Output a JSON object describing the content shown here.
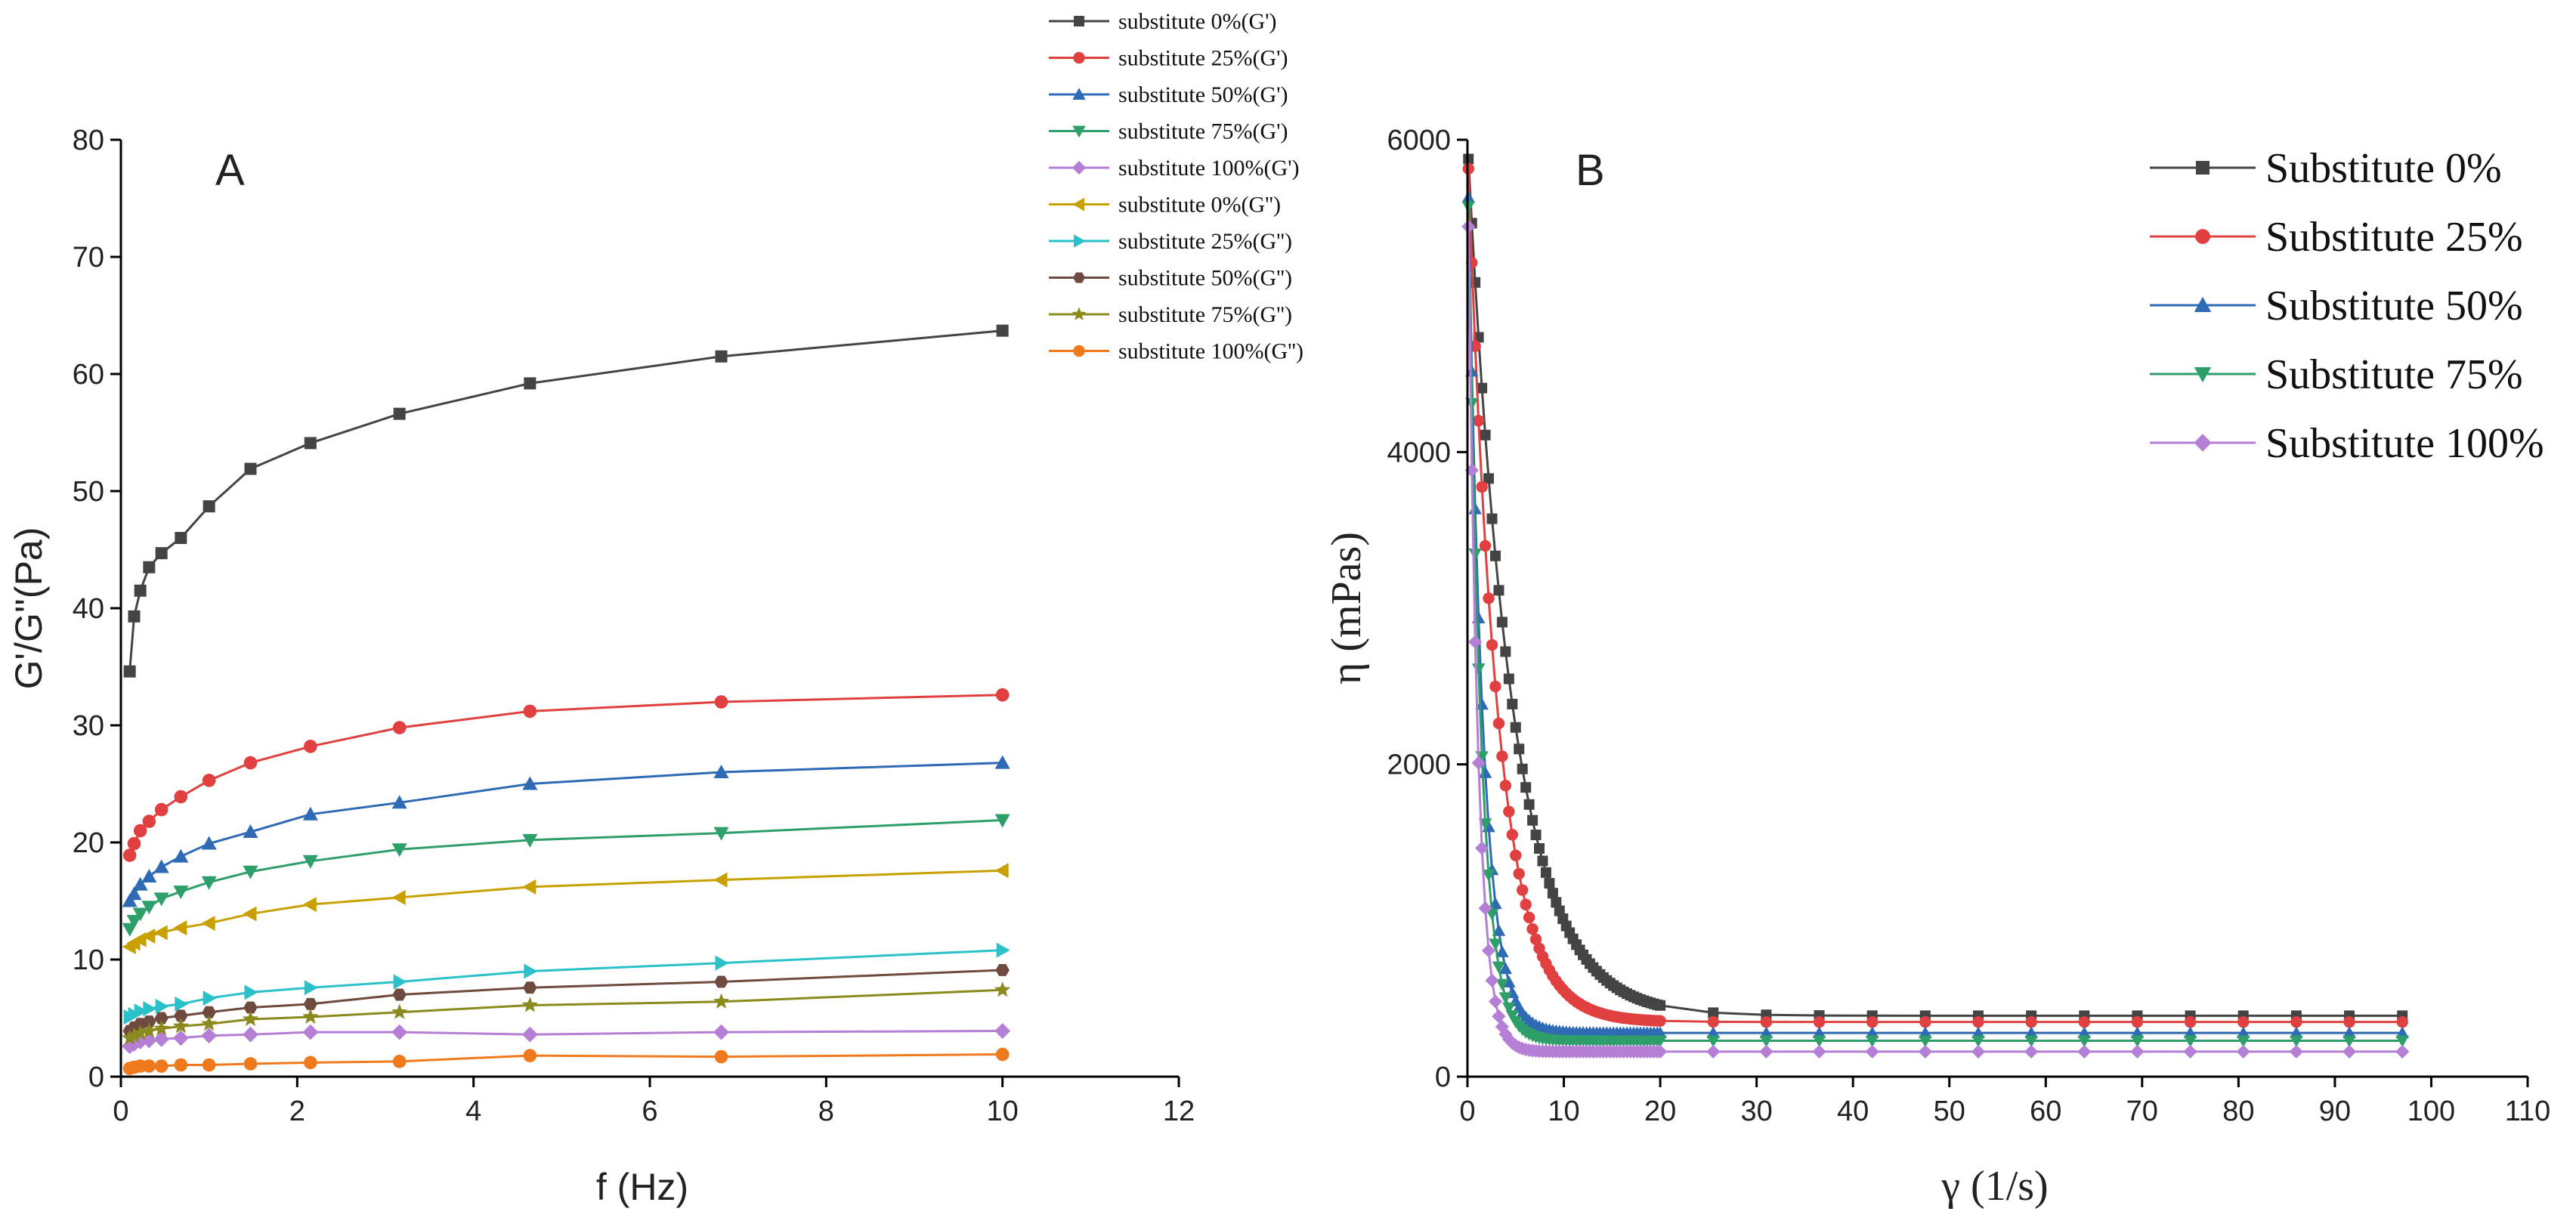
{
  "chart_data": [
    {
      "panel": "A",
      "type": "line",
      "xlabel": "f (Hz)",
      "ylabel": "G'/G''(Pa)",
      "xlim": [
        0,
        12
      ],
      "ylim": [
        0,
        80
      ],
      "xticks": [
        0,
        2,
        4,
        6,
        8,
        10,
        12
      ],
      "yticks": [
        0,
        10,
        20,
        30,
        40,
        50,
        60,
        70,
        80
      ],
      "legend_position": "top-right-outside",
      "x": [
        0.1,
        0.15,
        0.22,
        0.32,
        0.46,
        0.68,
        1.0,
        1.47,
        2.15,
        3.16,
        4.64,
        6.81,
        10.0
      ],
      "series": [
        {
          "name": "substitute 0%(G')",
          "color": "#444444",
          "marker": "square",
          "values": [
            34.6,
            39.3,
            41.5,
            43.5,
            44.7,
            46.0,
            48.7,
            51.9,
            54.1,
            56.6,
            59.2,
            61.5,
            63.7
          ]
        },
        {
          "name": "substitute 25%(G')",
          "color": "#e0403f",
          "marker": "circle",
          "values": [
            18.9,
            19.9,
            21.0,
            21.8,
            22.8,
            23.9,
            25.3,
            26.8,
            28.2,
            29.8,
            31.2,
            32.0,
            32.6
          ]
        },
        {
          "name": "substitute 50%(G')",
          "color": "#2f6ab5",
          "marker": "triangle-up",
          "values": [
            15.0,
            15.6,
            16.4,
            17.1,
            17.9,
            18.8,
            19.9,
            20.9,
            22.4,
            23.4,
            25.0,
            26.0,
            26.8
          ]
        },
        {
          "name": "substitute 75%(G')",
          "color": "#2e9e6a",
          "marker": "triangle-down",
          "values": [
            12.6,
            13.3,
            13.9,
            14.5,
            15.2,
            15.8,
            16.6,
            17.5,
            18.4,
            19.4,
            20.2,
            20.8,
            21.9
          ]
        },
        {
          "name": "substitute 100%(G')",
          "color": "#b57fd6",
          "marker": "diamond",
          "values": [
            2.6,
            2.8,
            3.0,
            3.1,
            3.2,
            3.3,
            3.5,
            3.6,
            3.8,
            3.8,
            3.6,
            3.8,
            3.9
          ]
        },
        {
          "name": "substitute 0%(G'')",
          "color": "#c8a000",
          "marker": "triangle-left",
          "values": [
            11.1,
            11.4,
            11.7,
            12.0,
            12.3,
            12.7,
            13.1,
            13.9,
            14.7,
            15.3,
            16.2,
            16.8,
            17.6
          ]
        },
        {
          "name": "substitute 25%(G'')",
          "color": "#2bc1c9",
          "marker": "triangle-right",
          "values": [
            5.1,
            5.3,
            5.6,
            5.8,
            6.0,
            6.2,
            6.7,
            7.2,
            7.6,
            8.1,
            9.0,
            9.7,
            10.8
          ]
        },
        {
          "name": "substitute 50%(G'')",
          "color": "#6e4a3f",
          "marker": "hexagon",
          "values": [
            3.9,
            4.2,
            4.5,
            4.7,
            5.0,
            5.2,
            5.5,
            5.9,
            6.2,
            7.0,
            7.6,
            8.1,
            9.1
          ]
        },
        {
          "name": "substitute 75%(G'')",
          "color": "#8a8a1e",
          "marker": "star",
          "values": [
            3.3,
            3.5,
            3.7,
            3.9,
            4.1,
            4.3,
            4.5,
            4.9,
            5.1,
            5.5,
            6.1,
            6.4,
            7.4
          ]
        },
        {
          "name": "substitute 100%(G'')",
          "color": "#ef7a1e",
          "marker": "circle",
          "values": [
            0.7,
            0.8,
            0.9,
            0.9,
            0.9,
            1.0,
            1.0,
            1.1,
            1.2,
            1.3,
            1.8,
            1.7,
            1.9
          ]
        }
      ],
      "title": "A"
    },
    {
      "panel": "B",
      "type": "line",
      "xlabel": "γ (1/s)",
      "ylabel": "η (mPas)",
      "xlim": [
        0,
        110
      ],
      "ylim": [
        0,
        6000
      ],
      "xticks": [
        0,
        10,
        20,
        30,
        40,
        50,
        60,
        70,
        80,
        90,
        100,
        110
      ],
      "yticks": [
        0,
        2000,
        4000,
        6000
      ],
      "legend_position": "top-right",
      "model": "eta(x) = inf + (eta0 - inf) * exp(-x / k)",
      "series": [
        {
          "name": "Substitute 0%",
          "color": "#444444",
          "marker": "square",
          "eta0": 6000,
          "inf": 390,
          "k": 4.5
        },
        {
          "name": "Substitute 25%",
          "color": "#e0403f",
          "marker": "circle",
          "eta0": 6000,
          "inf": 350,
          "k": 3.0
        },
        {
          "name": "Substitute 50%",
          "color": "#2f6ab5",
          "marker": "triangle-up",
          "eta0": 6000,
          "inf": 280,
          "k": 1.5
        },
        {
          "name": "Substitute 75%",
          "color": "#2e9e6a",
          "marker": "triangle-down",
          "eta0": 6000,
          "inf": 230,
          "k": 1.3
        },
        {
          "name": "Substitute 100%",
          "color": "#b57fd6",
          "marker": "diamond",
          "eta0": 6000,
          "inf": 160,
          "k": 1.0
        }
      ],
      "title": "B"
    }
  ]
}
